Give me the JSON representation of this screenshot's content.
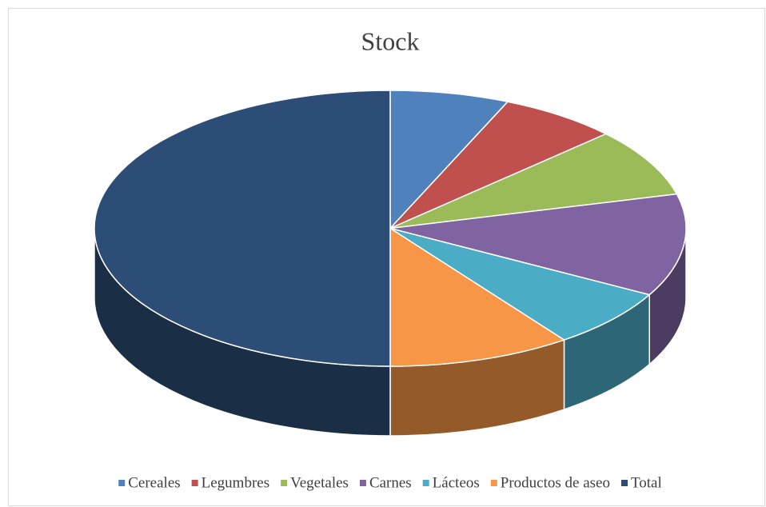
{
  "chart_data": {
    "type": "pie3d",
    "title": "Stock",
    "categories": [
      "Cereales",
      "Legumbres",
      "Vegetales",
      "Carnes",
      "Lácteos",
      "Productos de aseo",
      "Total"
    ],
    "values": [
      6.5,
      6.5,
      8,
      12,
      7,
      10,
      50
    ],
    "colors": [
      "#4f81bd",
      "#c0504d",
      "#9bbb59",
      "#8064a2",
      "#4bacc6",
      "#f79646",
      "#2c4d75"
    ],
    "legend": "bottom"
  }
}
